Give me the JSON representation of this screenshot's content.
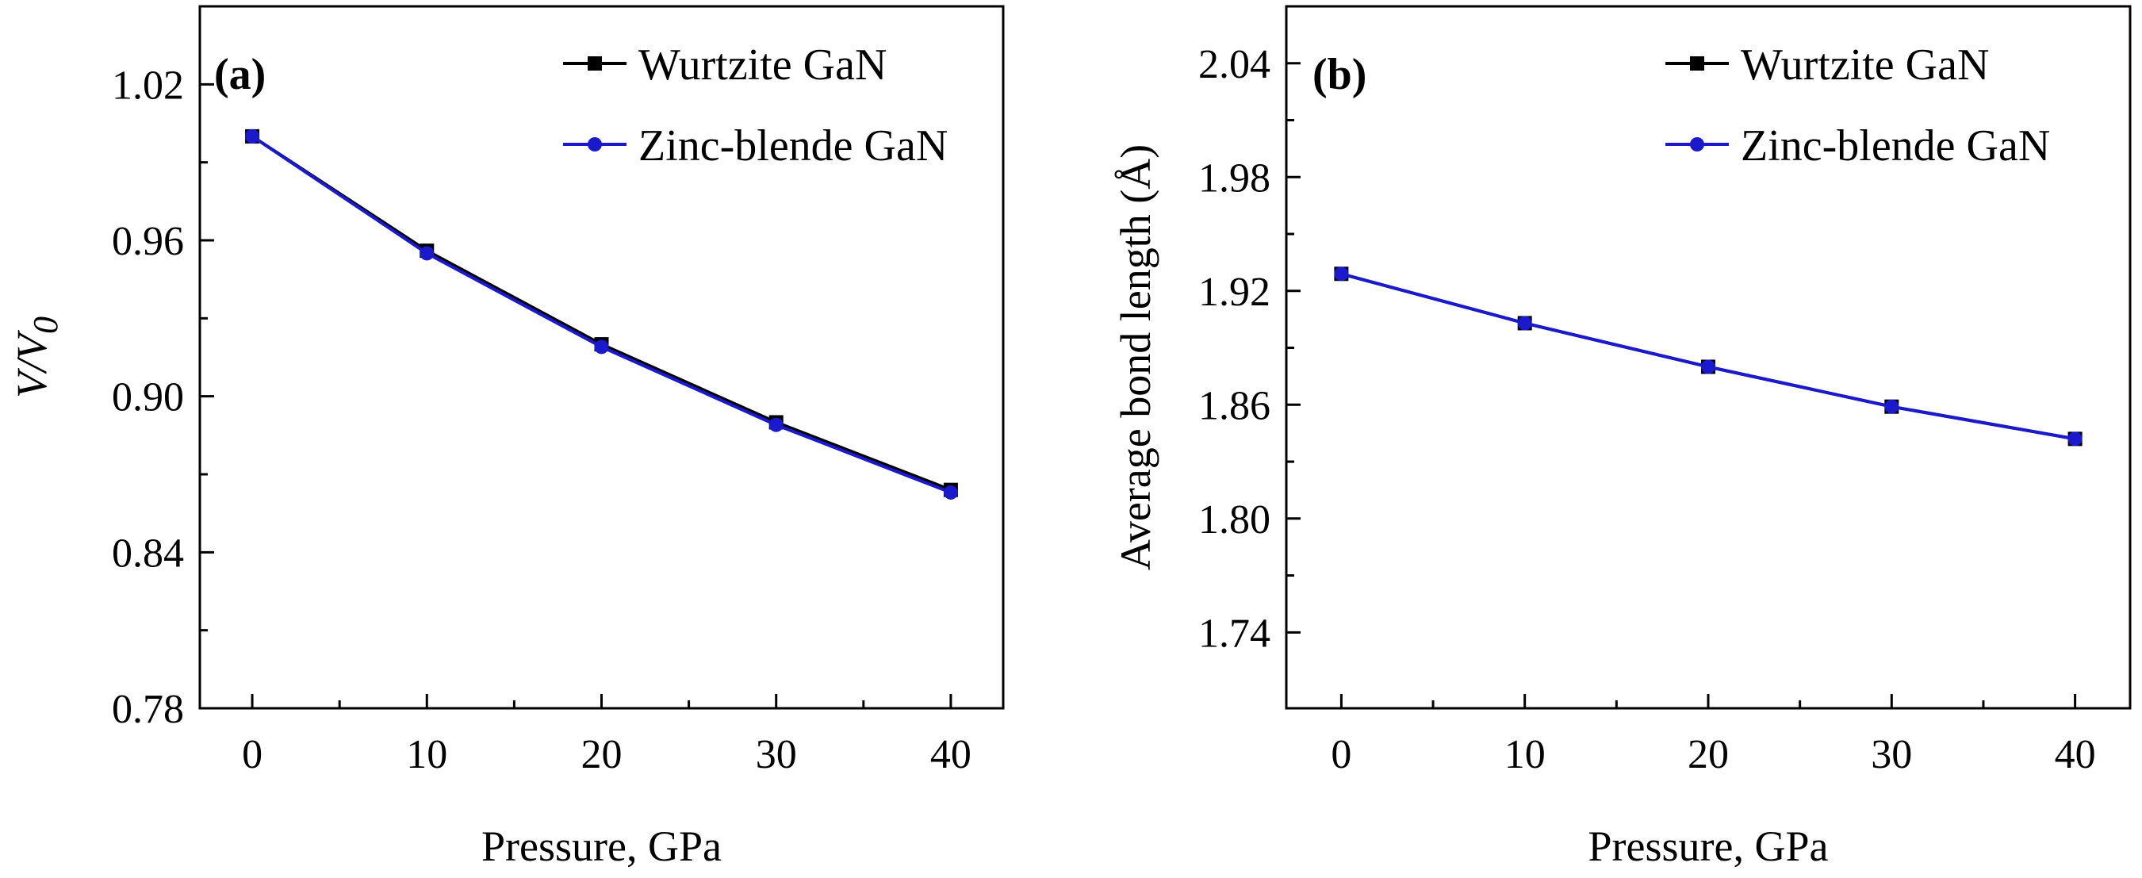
{
  "chart_data": [
    {
      "type": "line",
      "panel_label": "(a)",
      "title": "",
      "xlabel": "Pressure, GPa",
      "ylabel": "V/V0",
      "ylabel_main": "V/V",
      "ylabel_sub": "0",
      "x": [
        0,
        10,
        20,
        30,
        40
      ],
      "xlim": [
        -3,
        43
      ],
      "ylim": [
        0.78,
        1.05
      ],
      "xticks": [
        0,
        10,
        20,
        30,
        40
      ],
      "yticks": [
        0.78,
        0.84,
        0.9,
        0.96,
        1.02
      ],
      "ytick_labels": [
        "0.78",
        "0.84",
        "0.90",
        "0.96",
        "1.02"
      ],
      "grid": false,
      "legend_position": "top-right",
      "series": [
        {
          "name": "Wurtzite GaN",
          "marker": "square",
          "color": "#000000",
          "values": [
            1.0,
            0.956,
            0.92,
            0.89,
            0.864
          ]
        },
        {
          "name": "Zinc-blende GaN",
          "marker": "circle",
          "color": "#1a1acc",
          "values": [
            1.0,
            0.955,
            0.919,
            0.889,
            0.863
          ]
        }
      ]
    },
    {
      "type": "line",
      "panel_label": "(b)",
      "title": "",
      "xlabel": "Pressure, GPa",
      "ylabel": "Average bond length (Å)",
      "x": [
        0,
        10,
        20,
        30,
        40
      ],
      "xlim": [
        -3,
        43
      ],
      "ylim": [
        1.7,
        2.07
      ],
      "xticks": [
        0,
        10,
        20,
        30,
        40
      ],
      "yticks": [
        1.74,
        1.8,
        1.86,
        1.92,
        1.98,
        2.04
      ],
      "ytick_labels": [
        "1.74",
        "1.80",
        "1.86",
        "1.92",
        "1.98",
        "2.04"
      ],
      "grid": false,
      "legend_position": "top-right",
      "series": [
        {
          "name": "Wurtzite GaN",
          "marker": "square",
          "color": "#000000",
          "values": [
            1.929,
            1.903,
            1.88,
            1.859,
            1.842
          ]
        },
        {
          "name": "Zinc-blende GaN",
          "marker": "circle",
          "color": "#1a1acc",
          "values": [
            1.929,
            1.903,
            1.88,
            1.859,
            1.842
          ]
        }
      ]
    }
  ]
}
